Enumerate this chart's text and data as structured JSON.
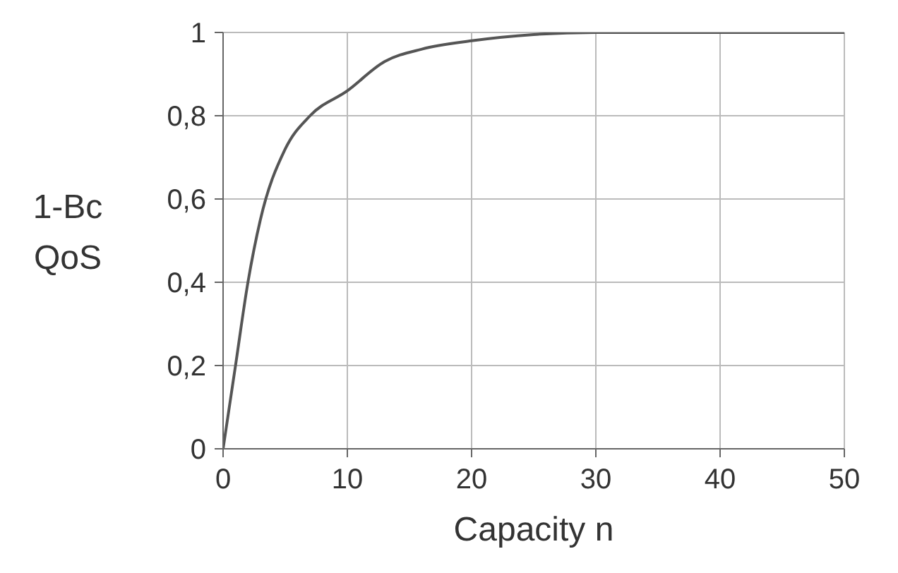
{
  "chart_data": {
    "type": "line",
    "xlabel": "Capacity n",
    "ylabel": "1-Bc\nQoS",
    "x": [
      0,
      1,
      2,
      3,
      5,
      7,
      10,
      13,
      16,
      20,
      25,
      30,
      40,
      50
    ],
    "series": [
      {
        "color": "#555555",
        "values": [
          0,
          0.2,
          0.4,
          0.55,
          0.72,
          0.8,
          0.86,
          0.93,
          0.96,
          0.98,
          0.995,
          1,
          1,
          1
        ]
      }
    ],
    "xlim": [
      0,
      50
    ],
    "xticks": [
      0,
      10,
      20,
      30,
      40,
      50
    ],
    "ylim": [
      0,
      1
    ],
    "yticks": [
      0,
      {
        "value": 0.2,
        "label": "0,2"
      },
      {
        "value": 0.4,
        "label": "0,4"
      },
      {
        "value": 0.6,
        "label": "0,6"
      },
      {
        "value": 0.8,
        "label": "0,8"
      },
      1
    ],
    "grid": true,
    "marker": "none",
    "line_style": "solid"
  }
}
